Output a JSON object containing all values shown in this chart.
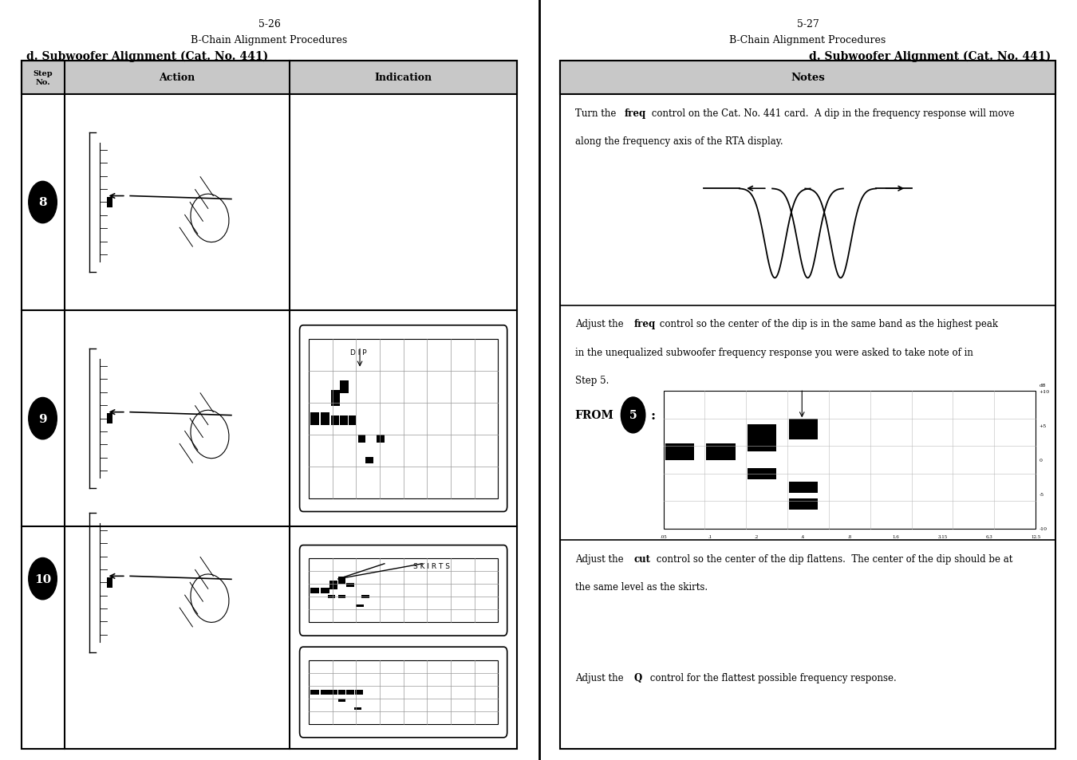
{
  "page_bg": "#ffffff",
  "left_page": {
    "page_num": "5-26",
    "title": "B-Chain Alignment Procedures",
    "subtitle": "d. Subwoofer Alignment (Cat. No. 441)",
    "table_header_bg": "#c8c8c8",
    "col_step_label": "Step\nNo.",
    "col_action_label": "Action",
    "col_indication_label": "Indication",
    "steps": [
      "8",
      "9",
      "10"
    ]
  },
  "right_page": {
    "page_num": "5-27",
    "title": "B-Chain Alignment Procedures",
    "subtitle": "d. Subwoofer Alignment (Cat. No. 441)",
    "notes_header_bg": "#c8c8c8",
    "notes_label": "Notes"
  }
}
